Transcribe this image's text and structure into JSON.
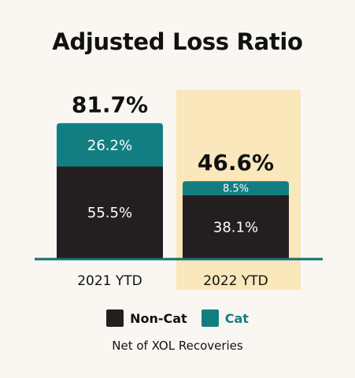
{
  "chart_data": {
    "type": "bar",
    "stacked": true,
    "title": "Adjusted Loss Ratio",
    "categories": [
      "2021 YTD",
      "2022 YTD"
    ],
    "totals": [
      "81.7%",
      "46.6%"
    ],
    "highlighted_category": "2022 YTD",
    "series": [
      {
        "name": "Non-Cat",
        "values": [
          55.5,
          38.1
        ],
        "labels": [
          "55.5%",
          "38.1%"
        ],
        "color": "#231f20"
      },
      {
        "name": "Cat",
        "values": [
          26.2,
          8.5
        ],
        "labels": [
          "26.2%",
          "8.5%"
        ],
        "color": "#137e82"
      }
    ],
    "ylim": [
      0,
      100
    ],
    "footnote": "Net of XOL Recoveries",
    "colors": {
      "highlight": "#fae7bc",
      "baseline": "#116e70",
      "background": "#faf7f2"
    }
  }
}
